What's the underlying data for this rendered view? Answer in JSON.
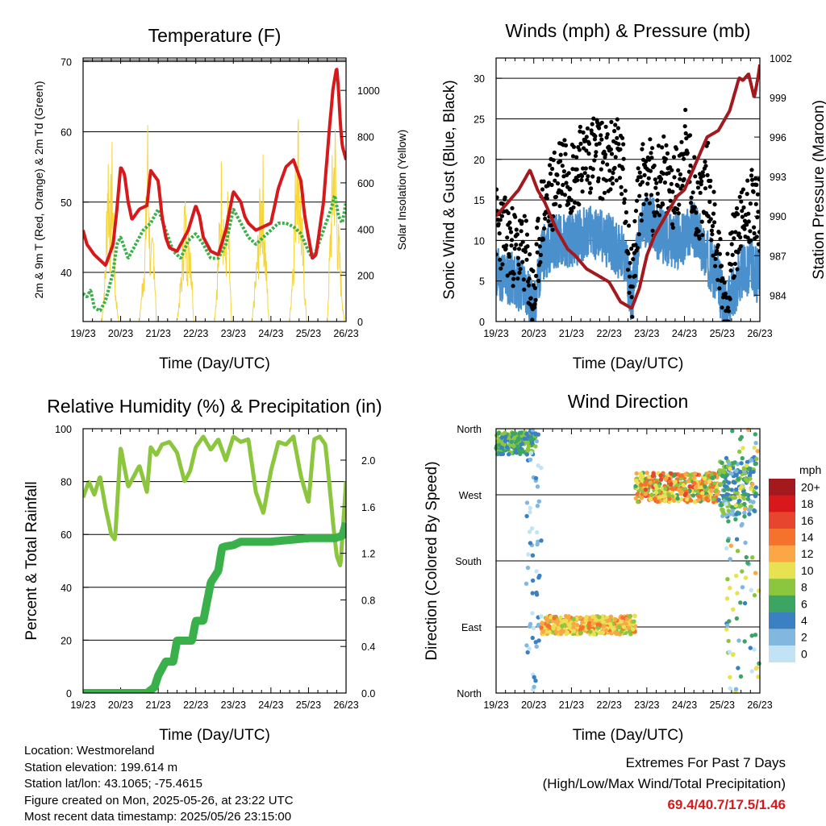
{
  "chart_data": [
    {
      "type": "line",
      "title": "Temperature (F)",
      "xlabel": "Time (Day/UTC)",
      "ylabel": "2m & 9m T (Red, Orange) & 2m Td (Green)",
      "ylabel_right": "Solar Insolation (Yellow)",
      "xticks": [
        "19/23",
        "20/23",
        "21/23",
        "22/23",
        "23/23",
        "24/23",
        "25/23",
        "26/23"
      ],
      "ylim": [
        33,
        70.5
      ],
      "yticks": [
        40,
        50,
        60,
        70
      ],
      "ylim_right": [
        0,
        1140
      ],
      "yticks_right": [
        0,
        200,
        400,
        600,
        800,
        1000
      ],
      "series": [
        {
          "key": "temp",
          "color": "#d7191c",
          "x": [
            0,
            0.1,
            0.3,
            0.6,
            0.8,
            0.9,
            1.0,
            1.1,
            1.2,
            1.3,
            1.5,
            1.7,
            1.8,
            2.0,
            2.1,
            2.2,
            2.3,
            2.5,
            2.8,
            3.0,
            3.1,
            3.2,
            3.4,
            3.6,
            3.8,
            4.0,
            4.2,
            4.3,
            4.4,
            4.6,
            4.8,
            5.0,
            5.2,
            5.4,
            5.6,
            5.8,
            5.9,
            6.0,
            6.1,
            6.2,
            6.4,
            6.55,
            6.65,
            6.75,
            6.8,
            6.85,
            6.9,
            7.0
          ],
          "y": [
            46,
            44,
            42.5,
            41,
            44,
            49,
            55,
            54,
            50,
            47.5,
            49,
            49.5,
            54.5,
            53,
            48,
            45,
            43.5,
            43,
            46,
            49.5,
            48,
            45,
            43,
            42.5,
            46,
            51.5,
            50,
            48,
            47,
            46,
            46.5,
            47,
            52,
            55,
            56,
            53,
            48,
            45,
            42,
            42.5,
            50,
            60,
            66,
            69.2,
            66,
            61,
            58,
            56
          ]
        },
        {
          "key": "dewpoint",
          "color": "#3ab04a",
          "x": [
            0,
            0.1,
            0.2,
            0.3,
            0.45,
            0.6,
            0.8,
            0.9,
            1.0,
            1.2,
            1.4,
            1.6,
            1.8,
            2.0,
            2.2,
            2.4,
            2.6,
            2.8,
            3.0,
            3.2,
            3.4,
            3.6,
            3.8,
            4.0,
            4.2,
            4.4,
            4.6,
            4.8,
            5.0,
            5.2,
            5.4,
            5.6,
            5.8,
            6.0,
            6.1,
            6.2,
            6.4,
            6.6,
            6.7,
            6.8,
            6.9,
            7.0
          ],
          "y": [
            37,
            36.5,
            37.5,
            35,
            34.5,
            36,
            40,
            44,
            45,
            42,
            44,
            46,
            47,
            49,
            46,
            43,
            42,
            44.5,
            45.5,
            44,
            42,
            42,
            44,
            49,
            47,
            45,
            44,
            45,
            46,
            47,
            47,
            46.5,
            45.5,
            43,
            42,
            43,
            46,
            49,
            51,
            48,
            47,
            50
          ]
        },
        {
          "key": "insolation",
          "color": "#f5d53a",
          "axis": "right",
          "x": [
            0,
            0.5,
            0.6,
            0.66,
            0.72,
            0.78,
            0.85,
            0.95,
            1.5,
            1.65,
            1.72,
            1.8,
            1.88,
            1.95,
            2.5,
            2.62,
            2.7,
            2.78,
            2.85,
            2.95,
            3.5,
            3.62,
            3.7,
            3.78,
            3.85,
            3.95,
            4.5,
            4.62,
            4.7,
            4.78,
            4.85,
            4.95,
            5.5,
            5.62,
            5.7,
            5.78,
            5.85,
            5.95,
            6.5,
            6.62,
            6.7,
            6.78,
            6.85,
            6.95,
            7.0
          ],
          "y": [
            0,
            0,
            300,
            930,
            550,
            850,
            200,
            0,
            0,
            400,
            950,
            300,
            500,
            0,
            0,
            250,
            620,
            420,
            500,
            0,
            0,
            450,
            850,
            350,
            600,
            0,
            0,
            300,
            580,
            800,
            400,
            0,
            0,
            500,
            1130,
            700,
            400,
            0,
            0,
            700,
            1000,
            500,
            300,
            0,
            0
          ]
        }
      ]
    },
    {
      "type": "line",
      "title": "Winds (mph) & Pressure (mb)",
      "xlabel": "Time (Day/UTC)",
      "ylabel": "Sonic Wind & Gust (Blue, Black)",
      "ylabel_right": "Station Pressure (Maroon)",
      "xticks": [
        "19/23",
        "20/23",
        "21/23",
        "22/23",
        "23/23",
        "24/23",
        "25/23",
        "26/23"
      ],
      "ylim": [
        0,
        32.5
      ],
      "yticks": [
        0,
        5,
        10,
        15,
        20,
        25,
        30
      ],
      "ylim_right": [
        982,
        1002
      ],
      "yticks_right": [
        984,
        987,
        990,
        993,
        996,
        999,
        1002
      ],
      "series": [
        {
          "key": "wind",
          "color": "#4a90cd",
          "x": [
            0,
            0.5,
            0.8,
            1.0,
            1.2,
            1.5,
            2.0,
            2.5,
            3.0,
            3.4,
            3.6,
            3.8,
            4.0,
            4.3,
            4.6,
            5.0,
            5.2,
            5.5,
            5.9,
            6.1,
            6.3,
            6.5,
            6.8,
            7.0
          ],
          "y": [
            6,
            5,
            4,
            1,
            8,
            10,
            10,
            11,
            10,
            8,
            3,
            10,
            13,
            11,
            10,
            10,
            12,
            9,
            5,
            1,
            4,
            6,
            7,
            5
          ]
        },
        {
          "key": "gust",
          "color": "#000000",
          "x": [
            0,
            0.5,
            0.8,
            1.0,
            1.2,
            1.5,
            1.8,
            2.0,
            2.3,
            2.6,
            3.0,
            3.2,
            3.4,
            3.6,
            3.8,
            4.0,
            4.2,
            4.4,
            4.6,
            4.8,
            5.0,
            5.2,
            5.4,
            5.6,
            5.9,
            6.1,
            6.3,
            6.5,
            6.8,
            7.0
          ],
          "y": [
            12,
            9,
            8,
            2,
            13,
            16,
            20,
            18,
            20,
            21,
            19,
            22,
            17,
            4,
            16,
            20,
            15,
            19,
            16,
            17,
            22,
            17,
            14,
            18,
            8,
            2,
            9,
            12,
            15,
            13
          ]
        },
        {
          "key": "pressure",
          "color": "#a3191e",
          "axis": "right",
          "x": [
            0,
            0.3,
            0.6,
            0.9,
            1.1,
            1.3,
            1.6,
            1.9,
            2.1,
            2.4,
            2.7,
            3.0,
            3.3,
            3.6,
            3.8,
            4.0,
            4.2,
            4.5,
            4.8,
            5.0,
            5.3,
            5.6,
            5.9,
            6.2,
            6.45,
            6.55,
            6.7,
            6.85,
            6.95,
            7.0
          ],
          "y": [
            990,
            991,
            992,
            993.5,
            992,
            991,
            989,
            987.5,
            987,
            986,
            985.5,
            985,
            983.5,
            983,
            984.5,
            987,
            988.5,
            990,
            991.5,
            992,
            994,
            996,
            996.5,
            998,
            1000.5,
            1000.3,
            1000.8,
            999,
            1000.5,
            1001.5
          ]
        }
      ]
    },
    {
      "type": "line",
      "title": "Relative Humidity (%) & Precipitation (in)",
      "xlabel": "Time (Day/UTC)",
      "ylabel": "Percent & Total Rainfall",
      "xticks": [
        "19/23",
        "20/23",
        "21/23",
        "22/23",
        "23/23",
        "24/23",
        "25/23",
        "26/23"
      ],
      "ylim": [
        0,
        100
      ],
      "yticks": [
        0,
        20,
        40,
        60,
        80,
        100
      ],
      "ylim_right": [
        0,
        2.27
      ],
      "yticks_right": [
        "0.0",
        "0.4",
        "0.8",
        "1.2",
        "1.6",
        "2.0"
      ],
      "series": [
        {
          "key": "rh",
          "color": "#8cc63f",
          "x": [
            0,
            0.15,
            0.3,
            0.45,
            0.6,
            0.75,
            0.85,
            1.0,
            1.2,
            1.35,
            1.5,
            1.7,
            1.8,
            1.95,
            2.1,
            2.3,
            2.5,
            2.7,
            2.85,
            3.0,
            3.2,
            3.4,
            3.6,
            3.8,
            4.0,
            4.2,
            4.4,
            4.6,
            4.8,
            5.0,
            5.2,
            5.4,
            5.6,
            5.8,
            6.0,
            6.15,
            6.3,
            6.45,
            6.55,
            6.65,
            6.75,
            6.85,
            7.0
          ],
          "y": [
            74,
            80,
            75,
            82,
            70,
            60,
            58,
            93,
            78,
            82,
            86,
            76,
            93,
            90,
            94,
            95,
            91,
            80,
            84,
            93,
            97,
            92,
            96,
            88,
            97,
            95,
            96,
            76,
            68,
            84,
            95,
            94,
            97,
            82,
            72,
            96,
            97,
            94,
            80,
            65,
            52,
            48,
            80
          ]
        },
        {
          "key": "precip",
          "color": "#3ab04a",
          "axis": "right",
          "x": [
            0,
            1.7,
            1.9,
            2.0,
            2.2,
            2.4,
            2.5,
            2.9,
            3.0,
            3.2,
            3.4,
            3.6,
            3.7,
            3.8,
            4.0,
            4.2,
            5.0,
            6.0,
            6.7,
            6.9,
            7.0
          ],
          "y": [
            0,
            0,
            0.05,
            0.15,
            0.27,
            0.27,
            0.45,
            0.45,
            0.62,
            0.62,
            0.95,
            1.05,
            1.25,
            1.26,
            1.27,
            1.3,
            1.3,
            1.33,
            1.33,
            1.35,
            1.46
          ]
        }
      ]
    },
    {
      "type": "scatter",
      "title": "Wind Direction",
      "xlabel": "Time (Day/UTC)",
      "ylabel": "Direction (Colored By Speed)",
      "xticks": [
        "19/23",
        "20/23",
        "21/23",
        "22/23",
        "23/23",
        "24/23",
        "25/23",
        "26/23"
      ],
      "yticks": [
        "North",
        "East",
        "South",
        "West",
        "North"
      ],
      "ylim": [
        0,
        360
      ],
      "colorbar": {
        "title": "mph",
        "labels": [
          "20+",
          "18",
          "16",
          "14",
          "12",
          "10",
          "8",
          "6",
          "4",
          "2",
          "0"
        ],
        "colors": [
          "#a3191e",
          "#d7191c",
          "#e8452f",
          "#f4722b",
          "#fba745",
          "#e8e151",
          "#8cc63f",
          "#3ca564",
          "#3b80c0",
          "#82b7e0",
          "#c2e3f6"
        ]
      },
      "clusters": [
        {
          "x0": 0.0,
          "x1": 1.05,
          "dir_min": 325,
          "dir_max": 355,
          "speed": [
            4,
            9
          ],
          "n": 180
        },
        {
          "x0": 0.8,
          "x1": 1.2,
          "dir_min": 0,
          "dir_max": 360,
          "speed": [
            0,
            5
          ],
          "n": 60
        },
        {
          "x0": 1.2,
          "x1": 3.7,
          "dir_min": 80,
          "dir_max": 105,
          "speed": [
            8,
            14
          ],
          "n": 380
        },
        {
          "x0": 3.7,
          "x1": 5.9,
          "dir_min": 260,
          "dir_max": 300,
          "speed": [
            5,
            16
          ],
          "n": 380
        },
        {
          "x0": 5.9,
          "x1": 6.9,
          "dir_min": 240,
          "dir_max": 320,
          "speed": [
            2,
            9
          ],
          "n": 160
        },
        {
          "x0": 6.1,
          "x1": 7.0,
          "dir_min": 0,
          "dir_max": 360,
          "speed": [
            0,
            12
          ],
          "n": 90
        }
      ]
    }
  ],
  "meta": {
    "location": "Location: Westmoreland",
    "elevation": "Station elevation: 199.614 m",
    "latlon": "Station lat/lon: 43.1065; -75.4615",
    "created": "Figure created on Mon, 2025-05-26, at 23:22 UTC",
    "recent": "Most recent data timestamp: 2025/05/26 23:15:00"
  },
  "extremes": {
    "line1": "Extremes For Past 7 Days",
    "line2": "(High/Low/Max Wind/Total Precipitation)",
    "values": "69.4/40.7/17.5/1.46"
  }
}
